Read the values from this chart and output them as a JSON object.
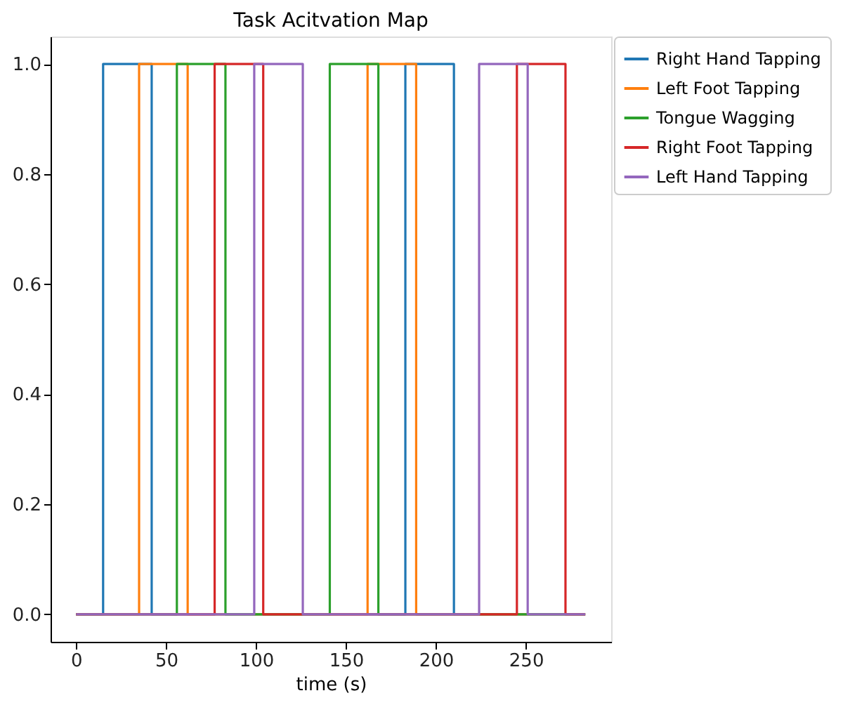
{
  "chart_data": {
    "type": "step",
    "title": "Task Acitvation Map",
    "xlabel": "time (s)",
    "xlim": [
      -14.2,
      297.4
    ],
    "xticks": [
      0,
      50,
      100,
      150,
      200,
      250
    ],
    "ylim": [
      -0.05,
      1.05
    ],
    "yticks": [
      {
        "value": 0,
        "label": "0.0"
      },
      {
        "value": 0.2,
        "label": "0.2"
      },
      {
        "value": 0.4,
        "label": "0.4"
      },
      {
        "value": 0.6,
        "label": "0.6"
      },
      {
        "value": 0.8,
        "label": "0.8"
      },
      {
        "value": 1,
        "label": "1.0"
      }
    ],
    "grid": false,
    "legend": "right",
    "line_style": "solid",
    "marker": "none",
    "series": [
      {
        "name": "Right Hand Tapping",
        "color": "#1f77b4",
        "x": [
          0,
          15,
          42,
          183,
          210,
          283
        ],
        "values": [
          0,
          1,
          0,
          1,
          0,
          0
        ]
      },
      {
        "name": "Left Foot Tapping",
        "color": "#ff7f0e",
        "x": [
          0,
          35,
          62,
          162,
          189,
          283
        ],
        "values": [
          0,
          1,
          0,
          1,
          0,
          0
        ]
      },
      {
        "name": "Tongue Wagging",
        "color": "#2ca02c",
        "x": [
          0,
          56,
          83,
          141,
          168,
          283
        ],
        "values": [
          0,
          1,
          0,
          1,
          0,
          0
        ]
      },
      {
        "name": "Right Foot Tapping",
        "color": "#d62728",
        "x": [
          0,
          77,
          104,
          245,
          272,
          283
        ],
        "values": [
          0,
          1,
          0,
          1,
          0,
          0
        ]
      },
      {
        "name": "Left Hand Tapping",
        "color": "#9467bd",
        "x": [
          0,
          99,
          126,
          224,
          251,
          283
        ],
        "values": [
          0,
          1,
          0,
          1,
          0,
          0
        ]
      }
    ]
  }
}
